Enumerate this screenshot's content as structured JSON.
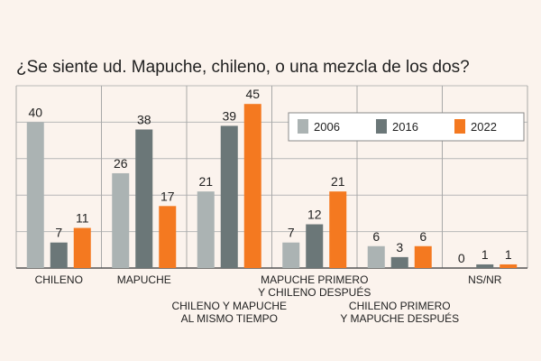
{
  "chart_data": {
    "type": "bar",
    "title": "¿Se siente ud. Mapuche, chileno, o una mezcla de los dos?",
    "categories": [
      [
        "CHILENO"
      ],
      [
        "MAPUCHE"
      ],
      [
        "CHILENO Y MAPUCHE",
        "AL MISMO TIEMPO"
      ],
      [
        "MAPUCHE PRIMERO",
        "Y CHILENO DESPUÉS"
      ],
      [
        "CHILENO PRIMERO",
        "Y MAPUCHE DESPUÉS"
      ],
      [
        "NS/NR"
      ]
    ],
    "series": [
      {
        "name": "2006",
        "color": "#abb3b3",
        "values": [
          40,
          26,
          21,
          7,
          6,
          0
        ]
      },
      {
        "name": "2016",
        "color": "#6b7778",
        "values": [
          7,
          38,
          39,
          12,
          3,
          1
        ]
      },
      {
        "name": "2022",
        "color": "#f47920",
        "values": [
          11,
          17,
          45,
          21,
          6,
          1
        ]
      }
    ],
    "ylim": [
      0,
      50
    ],
    "grid": true,
    "legend_position": "top-right"
  }
}
